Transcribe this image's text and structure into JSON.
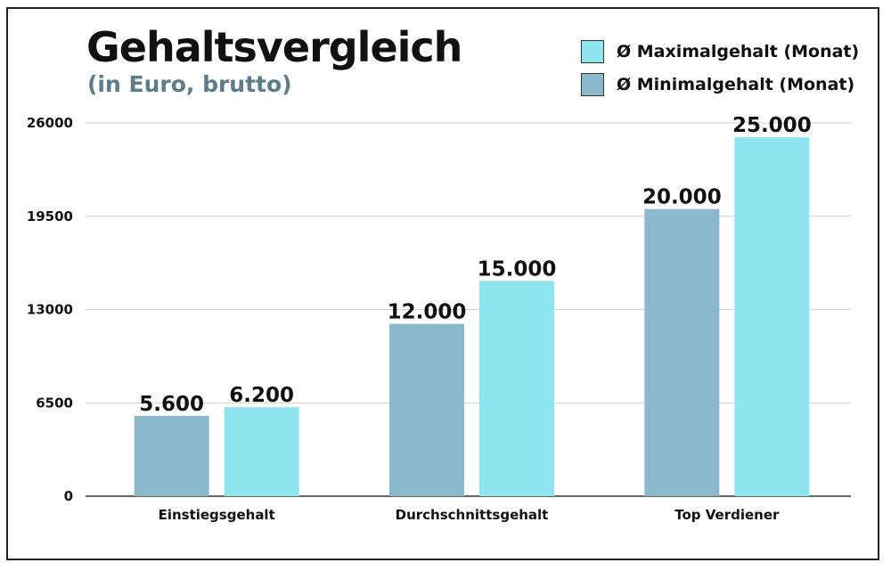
{
  "title": "Gehaltsvergleich",
  "subtitle": "(in Euro, brutto)",
  "colors": {
    "min": "#8bb9cc",
    "max": "#8ee4ef"
  },
  "chart_data": {
    "type": "bar",
    "title": "Gehaltsvergleich",
    "subtitle": "(in Euro, brutto)",
    "categories": [
      "Einstiegsgehalt",
      "Durchschnittsgehalt",
      "Top Verdiener"
    ],
    "series": [
      {
        "name": "Ø Minimalgehalt (Monat)",
        "values": [
          5600,
          12000,
          20000
        ],
        "labels": [
          "5.600",
          "12.000",
          "20.000"
        ],
        "color": "#8bb9cc"
      },
      {
        "name": "Ø Maximalgehalt (Monat)",
        "values": [
          6200,
          15000,
          25000
        ],
        "labels": [
          "6.200",
          "15.000",
          "25.000"
        ],
        "color": "#8ee4ef"
      }
    ],
    "ylim": [
      0,
      26000
    ],
    "yticks": [
      0,
      6500,
      13000,
      19500,
      26000
    ],
    "grid": true,
    "legend": "top-right"
  }
}
